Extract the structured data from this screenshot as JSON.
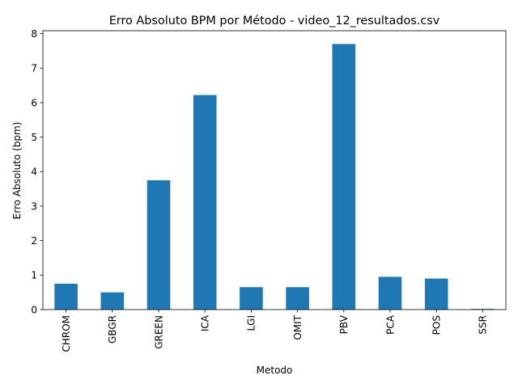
{
  "chart_data": {
    "type": "bar",
    "title": "Erro Absoluto BPM por Método - video_12_resultados.csv",
    "xlabel": "Metodo",
    "ylabel": "Erro Absoluto (bpm)",
    "categories": [
      "CHROM",
      "GBGR",
      "GREEN",
      "ICA",
      "LGI",
      "OMIT",
      "PBV",
      "PCA",
      "POS",
      "SSR"
    ],
    "values": [
      0.75,
      0.5,
      3.75,
      6.22,
      0.65,
      0.65,
      7.7,
      0.95,
      0.9,
      0.02
    ],
    "yticks": [
      0,
      1,
      2,
      3,
      4,
      5,
      6,
      7,
      8
    ],
    "ylim": [
      0,
      8.085
    ],
    "bar_color": "#1f77b4",
    "grid": false,
    "legend": "none"
  }
}
